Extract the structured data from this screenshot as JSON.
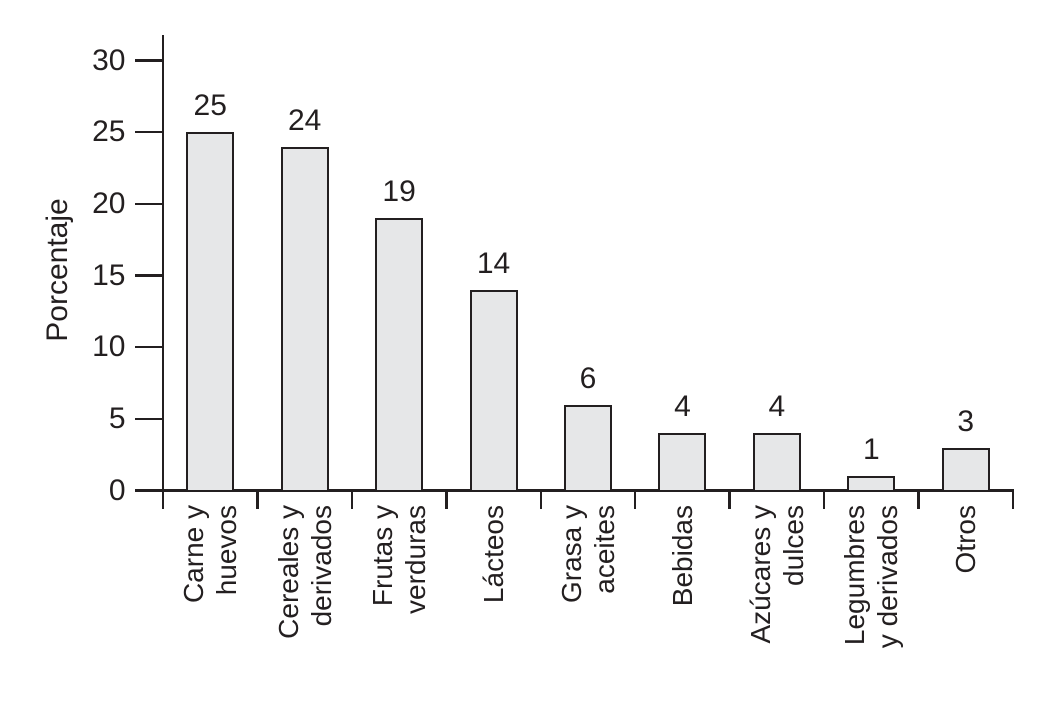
{
  "chart_data": {
    "type": "bar",
    "title": "",
    "xlabel": "",
    "ylabel": "Porcentaje",
    "categories": [
      "Carne y huevos",
      "Cereales y derivados",
      "Frutas y verduras",
      "Lácteos",
      "Grasa y aceites",
      "Bebidas",
      "Azúcares y dulces",
      "Legumbres y derivados",
      "Otros"
    ],
    "category_label_lines": [
      [
        "Carne y",
        "huevos"
      ],
      [
        "Cereales y",
        "derivados"
      ],
      [
        "Frutas y",
        "verduras"
      ],
      [
        "Lácteos"
      ],
      [
        "Grasa y",
        "aceites"
      ],
      [
        "Bebidas"
      ],
      [
        "Azúcares y",
        "dulces"
      ],
      [
        "Legumbres",
        "y derivados"
      ],
      [
        "Otros"
      ]
    ],
    "values": [
      25,
      24,
      19,
      14,
      6,
      4,
      4,
      1,
      3
    ],
    "bar_value_labels": [
      "25",
      "24",
      "19",
      "14",
      "6",
      "4",
      "4",
      "1",
      "3"
    ],
    "y_ticks": [
      0,
      5,
      10,
      15,
      20,
      25,
      30
    ],
    "ylim": [
      0,
      31.8
    ],
    "grid": false,
    "legend": null,
    "colors": {
      "bar_fill": "#e6e7e8",
      "line": "#231f20",
      "text": "#231f20",
      "background": "#ffffff"
    }
  }
}
